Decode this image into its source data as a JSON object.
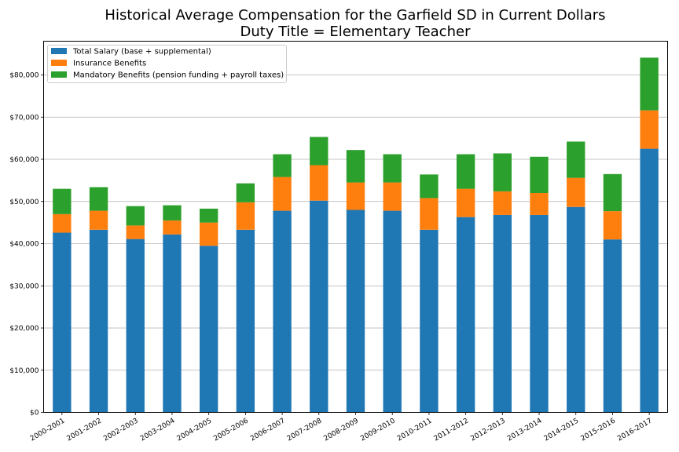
{
  "chart_data": {
    "type": "bar",
    "stacked": true,
    "title": "Historical Average Compensation for the Garfield SD in Current Dollars",
    "subtitle": "Duty Title = Elementary Teacher",
    "xlabel": "",
    "ylabel": "",
    "ylim": [
      0,
      88000
    ],
    "y_ticks": [
      0,
      10000,
      20000,
      30000,
      40000,
      50000,
      60000,
      70000,
      80000
    ],
    "y_tick_labels": [
      "$0",
      "$10,000",
      "$20,000",
      "$30,000",
      "$40,000",
      "$50,000",
      "$60,000",
      "$70,000",
      "$80,000"
    ],
    "grid": "horizontal",
    "legend_position": "top-left",
    "categories": [
      "2000-2001",
      "2001-2002",
      "2002-2003",
      "2003-2004",
      "2004-2005",
      "2005-2006",
      "2006-2007",
      "2007-2008",
      "2008-2009",
      "2009-2010",
      "2010-2011",
      "2011-2012",
      "2012-2013",
      "2013-2014",
      "2014-2015",
      "2015-2016",
      "2016-2017"
    ],
    "series": [
      {
        "name": "Total Salary (base + supplemental)",
        "color": "#1f77b4",
        "values": [
          42600,
          43300,
          41100,
          42200,
          39500,
          43300,
          47800,
          50200,
          48000,
          47800,
          43300,
          46300,
          46800,
          46800,
          48700,
          41000,
          62500
        ]
      },
      {
        "name": "Insurance Benefits",
        "color": "#ff7f0e",
        "values": [
          4400,
          4500,
          3200,
          3300,
          5500,
          6500,
          8000,
          8400,
          6500,
          6700,
          7500,
          6700,
          5600,
          5200,
          6900,
          6700,
          9100
        ]
      },
      {
        "name": "Mandatory Benefits (pension funding + payroll taxes)",
        "color": "#2ca02c",
        "values": [
          6000,
          5600,
          4600,
          3600,
          3300,
          4500,
          5400,
          6700,
          7700,
          6700,
          5600,
          8200,
          9000,
          8600,
          8600,
          8800,
          12500
        ]
      }
    ]
  }
}
